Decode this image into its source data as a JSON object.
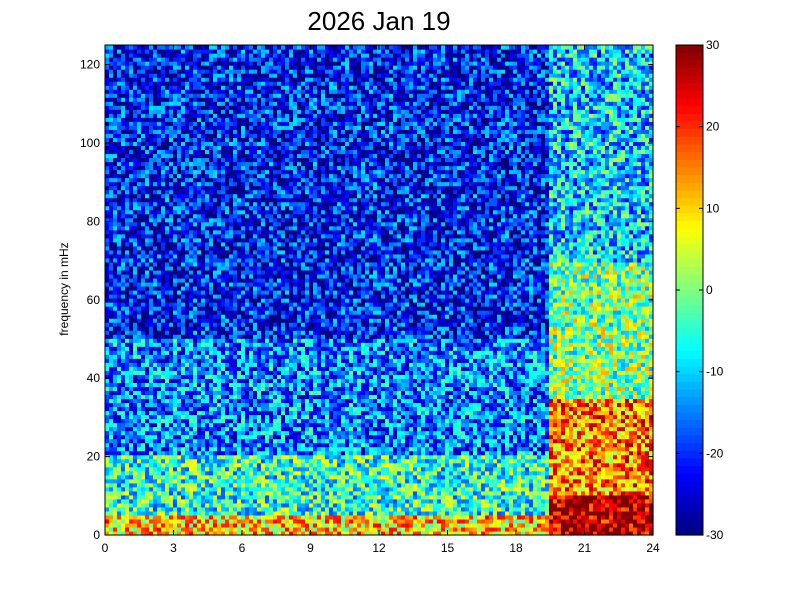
{
  "chart_data": {
    "type": "heatmap",
    "title": "2026 Jan 19",
    "xlabel": "",
    "ylabel": "frequency in mHz",
    "xlim": [
      0,
      24
    ],
    "ylim": [
      0,
      125
    ],
    "x_ticks": [
      "0",
      "3",
      "6",
      "9",
      "12",
      "15",
      "18",
      "21",
      "24"
    ],
    "y_ticks": [
      "0",
      "20",
      "40",
      "60",
      "80",
      "100",
      "120"
    ],
    "colorbar": {
      "colormap": "jet",
      "clim": [
        -30,
        30
      ],
      "ticks": [
        "30",
        "20",
        "10",
        "0",
        "-10",
        "-20",
        "-30"
      ]
    },
    "description_of_values": [
      {
        "x_range": [
          0,
          19.5
        ],
        "y_range": [
          0,
          5
        ],
        "level": 10
      },
      {
        "x_range": [
          0,
          19.5
        ],
        "y_range": [
          5,
          20
        ],
        "level": -5
      },
      {
        "x_range": [
          0,
          19.5
        ],
        "y_range": [
          20,
          50
        ],
        "level": -15
      },
      {
        "x_range": [
          0,
          19.5
        ],
        "y_range": [
          50,
          125
        ],
        "level": -22
      },
      {
        "x_range": [
          19.5,
          24
        ],
        "y_range": [
          0,
          10
        ],
        "level": 28
      },
      {
        "x_range": [
          19.5,
          24
        ],
        "y_range": [
          10,
          35
        ],
        "level": 15
      },
      {
        "x_range": [
          19.5,
          24
        ],
        "y_range": [
          35,
          70
        ],
        "level": 0
      },
      {
        "x_range": [
          19.5,
          24
        ],
        "y_range": [
          70,
          125
        ],
        "level": -10
      }
    ]
  }
}
